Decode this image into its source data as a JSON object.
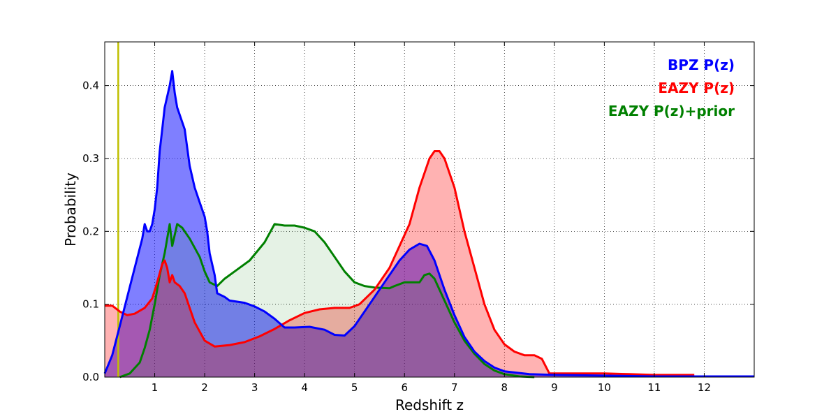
{
  "chart_data": {
    "type": "area",
    "title": "",
    "xlabel": "Redshift z",
    "ylabel": "Probability",
    "xlim": [
      0,
      13
    ],
    "ylim": [
      0,
      0.46
    ],
    "x_ticks": [
      1,
      2,
      3,
      4,
      5,
      6,
      7,
      8,
      9,
      10,
      11,
      12
    ],
    "x_tick_labels": [
      "1",
      "2",
      "3",
      "4",
      "5",
      "6",
      "7",
      "8",
      "9",
      "10",
      "11",
      "12"
    ],
    "y_ticks": [
      0.0,
      0.1,
      0.2,
      0.3,
      0.4
    ],
    "y_tick_labels": [
      "0.0",
      "0.1",
      "0.2",
      "0.3",
      "0.4"
    ],
    "grid": true,
    "legend_position": "top-right",
    "vertical_marker": {
      "x": 0.27,
      "color": "#bfbf00"
    },
    "series": [
      {
        "name": "BPZ P(z)",
        "color": "#0000ff",
        "fill": "#0000ff",
        "fill_opacity": 0.5,
        "points": [
          [
            0,
            0.005
          ],
          [
            0.15,
            0.03
          ],
          [
            0.3,
            0.07
          ],
          [
            0.45,
            0.11
          ],
          [
            0.6,
            0.15
          ],
          [
            0.75,
            0.19
          ],
          [
            0.8,
            0.21
          ],
          [
            0.85,
            0.2
          ],
          [
            0.9,
            0.2
          ],
          [
            0.95,
            0.21
          ],
          [
            1.0,
            0.23
          ],
          [
            1.05,
            0.26
          ],
          [
            1.1,
            0.31
          ],
          [
            1.15,
            0.34
          ],
          [
            1.2,
            0.37
          ],
          [
            1.3,
            0.4
          ],
          [
            1.35,
            0.42
          ],
          [
            1.4,
            0.39
          ],
          [
            1.45,
            0.37
          ],
          [
            1.55,
            0.35
          ],
          [
            1.6,
            0.34
          ],
          [
            1.7,
            0.29
          ],
          [
            1.8,
            0.26
          ],
          [
            1.9,
            0.24
          ],
          [
            2.0,
            0.22
          ],
          [
            2.05,
            0.2
          ],
          [
            2.1,
            0.17
          ],
          [
            2.2,
            0.14
          ],
          [
            2.25,
            0.115
          ],
          [
            2.4,
            0.11
          ],
          [
            2.5,
            0.105
          ],
          [
            2.8,
            0.102
          ],
          [
            3.0,
            0.097
          ],
          [
            3.2,
            0.09
          ],
          [
            3.4,
            0.08
          ],
          [
            3.6,
            0.068
          ],
          [
            3.8,
            0.068
          ],
          [
            4.1,
            0.069
          ],
          [
            4.4,
            0.065
          ],
          [
            4.6,
            0.058
          ],
          [
            4.8,
            0.057
          ],
          [
            5.0,
            0.07
          ],
          [
            5.3,
            0.1
          ],
          [
            5.6,
            0.13
          ],
          [
            5.9,
            0.16
          ],
          [
            6.1,
            0.175
          ],
          [
            6.3,
            0.183
          ],
          [
            6.45,
            0.18
          ],
          [
            6.6,
            0.16
          ],
          [
            6.8,
            0.12
          ],
          [
            7.0,
            0.085
          ],
          [
            7.2,
            0.055
          ],
          [
            7.4,
            0.035
          ],
          [
            7.6,
            0.022
          ],
          [
            7.8,
            0.013
          ],
          [
            8.0,
            0.008
          ],
          [
            8.5,
            0.004
          ],
          [
            9.0,
            0.003
          ],
          [
            10,
            0.002
          ],
          [
            11,
            0.001
          ],
          [
            13,
            0.001
          ]
        ]
      },
      {
        "name": "EAZY P(z)",
        "color": "#ff0000",
        "fill": "#ff0000",
        "fill_opacity": 0.3,
        "points": [
          [
            0,
            0.098
          ],
          [
            0.15,
            0.098
          ],
          [
            0.3,
            0.09
          ],
          [
            0.45,
            0.085
          ],
          [
            0.6,
            0.087
          ],
          [
            0.8,
            0.095
          ],
          [
            0.95,
            0.108
          ],
          [
            1.05,
            0.13
          ],
          [
            1.15,
            0.155
          ],
          [
            1.2,
            0.16
          ],
          [
            1.25,
            0.15
          ],
          [
            1.3,
            0.13
          ],
          [
            1.35,
            0.14
          ],
          [
            1.4,
            0.13
          ],
          [
            1.5,
            0.125
          ],
          [
            1.6,
            0.115
          ],
          [
            1.7,
            0.095
          ],
          [
            1.8,
            0.075
          ],
          [
            2.0,
            0.05
          ],
          [
            2.2,
            0.042
          ],
          [
            2.5,
            0.044
          ],
          [
            2.8,
            0.048
          ],
          [
            3.1,
            0.056
          ],
          [
            3.4,
            0.066
          ],
          [
            3.7,
            0.078
          ],
          [
            4.0,
            0.088
          ],
          [
            4.3,
            0.093
          ],
          [
            4.6,
            0.095
          ],
          [
            4.9,
            0.095
          ],
          [
            5.1,
            0.1
          ],
          [
            5.4,
            0.12
          ],
          [
            5.7,
            0.15
          ],
          [
            5.9,
            0.18
          ],
          [
            6.1,
            0.21
          ],
          [
            6.3,
            0.26
          ],
          [
            6.5,
            0.3
          ],
          [
            6.6,
            0.31
          ],
          [
            6.7,
            0.31
          ],
          [
            6.8,
            0.3
          ],
          [
            7.0,
            0.26
          ],
          [
            7.2,
            0.2
          ],
          [
            7.4,
            0.15
          ],
          [
            7.6,
            0.1
          ],
          [
            7.8,
            0.065
          ],
          [
            8.0,
            0.045
          ],
          [
            8.2,
            0.035
          ],
          [
            8.4,
            0.03
          ],
          [
            8.6,
            0.03
          ],
          [
            8.75,
            0.025
          ],
          [
            8.9,
            0.005
          ],
          [
            9.0,
            0.005
          ],
          [
            10,
            0.005
          ],
          [
            10.5,
            0.004
          ],
          [
            11,
            0.003
          ],
          [
            11.8,
            0.003
          ]
        ]
      },
      {
        "name": "EAZY P(z)+prior",
        "color": "#008000",
        "fill": "#008000",
        "fill_opacity": 0.1,
        "points": [
          [
            0.3,
            0
          ],
          [
            0.5,
            0.005
          ],
          [
            0.7,
            0.02
          ],
          [
            0.8,
            0.04
          ],
          [
            0.9,
            0.065
          ],
          [
            1.0,
            0.1
          ],
          [
            1.1,
            0.14
          ],
          [
            1.2,
            0.17
          ],
          [
            1.3,
            0.21
          ],
          [
            1.35,
            0.18
          ],
          [
            1.45,
            0.21
          ],
          [
            1.55,
            0.205
          ],
          [
            1.7,
            0.19
          ],
          [
            1.9,
            0.165
          ],
          [
            2.0,
            0.145
          ],
          [
            2.1,
            0.13
          ],
          [
            2.25,
            0.125
          ],
          [
            2.4,
            0.135
          ],
          [
            2.6,
            0.145
          ],
          [
            2.9,
            0.16
          ],
          [
            3.2,
            0.185
          ],
          [
            3.4,
            0.21
          ],
          [
            3.6,
            0.208
          ],
          [
            3.8,
            0.208
          ],
          [
            4.0,
            0.205
          ],
          [
            4.2,
            0.2
          ],
          [
            4.4,
            0.185
          ],
          [
            4.6,
            0.165
          ],
          [
            4.8,
            0.145
          ],
          [
            5.0,
            0.13
          ],
          [
            5.2,
            0.125
          ],
          [
            5.4,
            0.123
          ],
          [
            5.7,
            0.122
          ],
          [
            5.8,
            0.125
          ],
          [
            6.0,
            0.13
          ],
          [
            6.2,
            0.13
          ],
          [
            6.3,
            0.13
          ],
          [
            6.4,
            0.14
          ],
          [
            6.5,
            0.142
          ],
          [
            6.6,
            0.135
          ],
          [
            6.8,
            0.105
          ],
          [
            7.0,
            0.075
          ],
          [
            7.2,
            0.05
          ],
          [
            7.4,
            0.032
          ],
          [
            7.6,
            0.018
          ],
          [
            7.8,
            0.009
          ],
          [
            8.0,
            0.004
          ],
          [
            8.3,
            0.001
          ],
          [
            8.6,
            0
          ]
        ]
      }
    ]
  }
}
